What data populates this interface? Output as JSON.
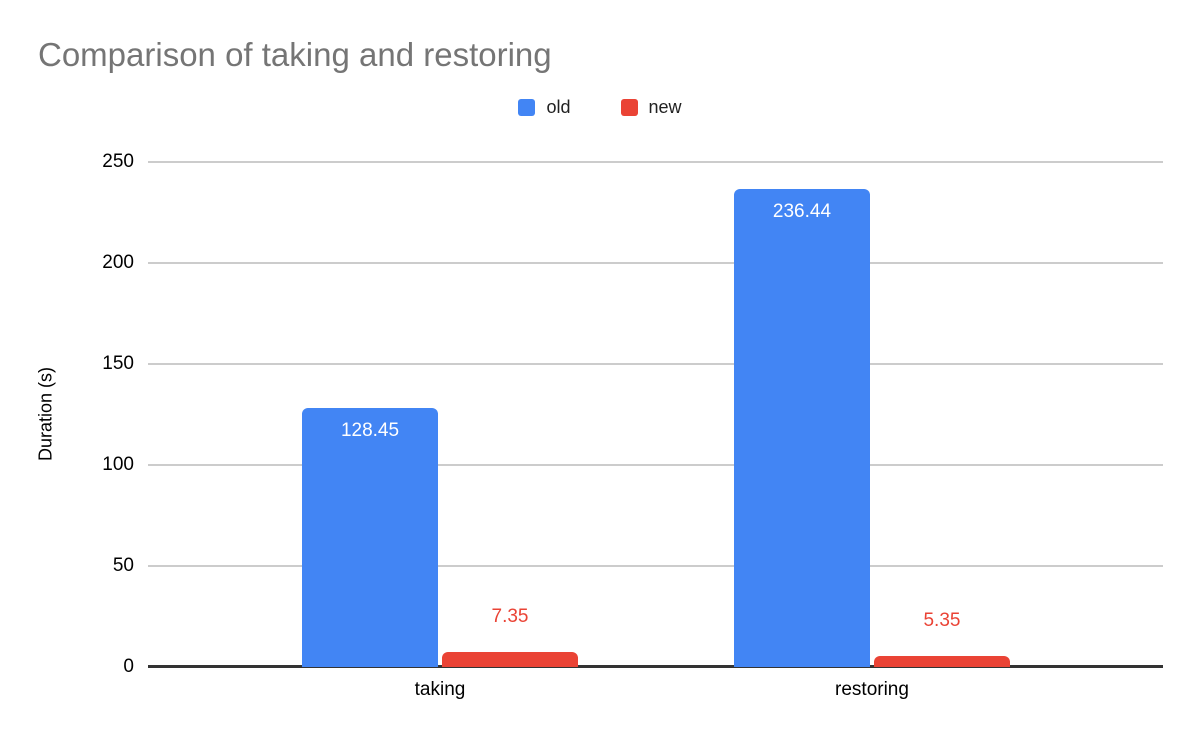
{
  "chart_data": {
    "type": "bar",
    "title": "Comparison of taking and restoring",
    "xlabel": "",
    "ylabel": "Duration (s)",
    "categories": [
      "taking",
      "restoring"
    ],
    "series": [
      {
        "name": "old",
        "color": "#4285f4",
        "values": [
          128.45,
          236.44
        ],
        "value_labels": [
          "128.45",
          "236.44"
        ],
        "label_style": "inside-white",
        "label_text_color": "#ffffff"
      },
      {
        "name": "new",
        "color": "#ea4335",
        "values": [
          7.35,
          5.35
        ],
        "value_labels": [
          "7.35",
          "5.35"
        ],
        "label_style": "above-colored",
        "label_text_color": "#ea4335"
      }
    ],
    "yticks": [
      0,
      50,
      100,
      150,
      200,
      250
    ],
    "ylim": [
      0,
      250
    ],
    "grid": true,
    "legend_position": "top-center",
    "colors": {
      "title_text": "#757575",
      "axis_text": "#000000",
      "gridline": "#cccccc",
      "axis_line": "#333333",
      "background": "#ffffff"
    }
  }
}
